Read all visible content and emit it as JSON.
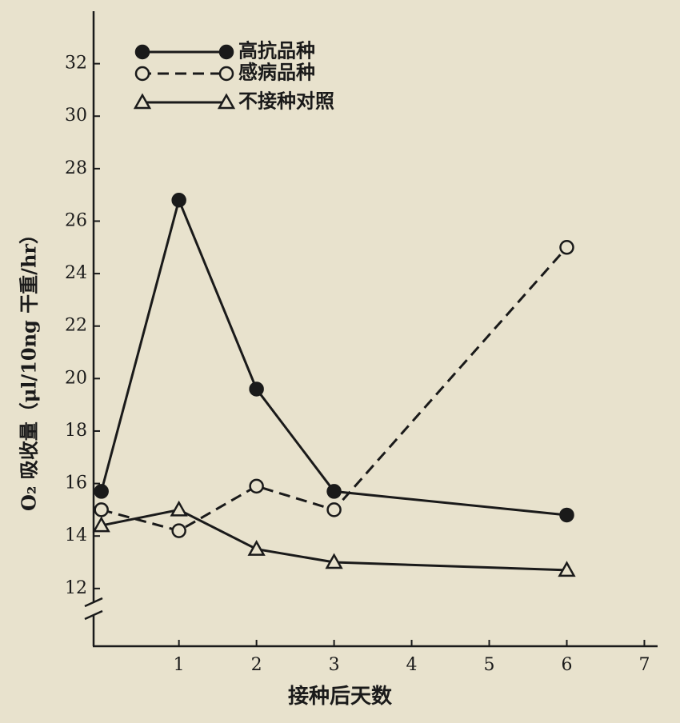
{
  "chart_data": {
    "type": "line",
    "xlabel": "接种后天数",
    "ylabel": "O₂ 吸收量（μl/10ng 干重/hr）",
    "xlim": [
      -0.1,
      7.15
    ],
    "xticks": [
      1,
      2,
      3,
      4,
      5,
      6,
      7
    ],
    "ylim": [
      9.8,
      34
    ],
    "yticks": [
      12,
      14,
      16,
      18,
      20,
      22,
      24,
      26,
      28,
      30,
      32
    ],
    "legend": "top-left",
    "series": [
      {
        "name": "高抗品种",
        "color": "#1a1a1a",
        "line_style": "solid",
        "marker": "filled-circle",
        "x": [
          0,
          1,
          2,
          3,
          6
        ],
        "values": [
          15.7,
          26.8,
          19.6,
          15.7,
          14.8
        ]
      },
      {
        "name": "感病品种",
        "color": "#1a1a1a",
        "line_style": "dashed",
        "marker": "open-circle",
        "x": [
          0,
          1,
          2,
          3,
          6
        ],
        "values": [
          15.0,
          14.2,
          15.9,
          15.0,
          25.0
        ]
      },
      {
        "name": "不接种对照",
        "color": "#1a1a1a",
        "line_style": "solid",
        "marker": "open-triangle",
        "x": [
          0,
          1,
          2,
          3,
          6
        ],
        "values": [
          14.4,
          15.0,
          13.5,
          13.0,
          12.7
        ]
      }
    ]
  }
}
